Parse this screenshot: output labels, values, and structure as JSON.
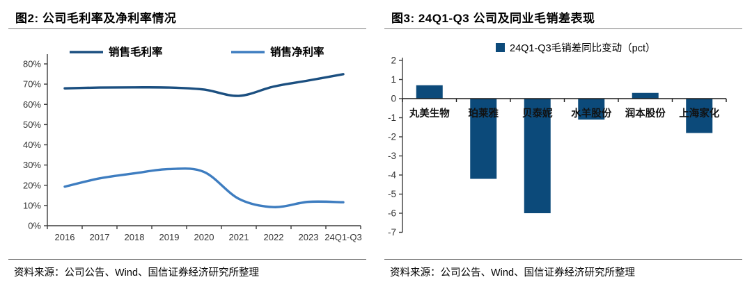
{
  "left_panel": {
    "title": "图2: 公司毛利率及净利率情况",
    "source": "资料来源：公司公告、Wind、国信证券经济研究所整理"
  },
  "right_panel": {
    "title": "图3: 24Q1-Q3 公司及同业毛销差表现",
    "source": "资料来源：公司公告、Wind、国信证券经济研究所整理"
  },
  "colors": {
    "gross_margin_line": "#1b4f80",
    "net_margin_line": "#3e7dc0",
    "bar_fill": "#0c4a7a",
    "axis": "#3c3c3c",
    "tick_label": "#333333",
    "rule_gray": "#7a7a7a"
  },
  "chart_data": [
    {
      "type": "line",
      "title": "公司毛利率及净利率情况",
      "categories": [
        "2016",
        "2017",
        "2018",
        "2019",
        "2020",
        "2021",
        "2022",
        "2023",
        "24Q1-Q3"
      ],
      "series": [
        {
          "name": "销售毛利率",
          "color": "#1b4f80",
          "values": [
            67.9,
            68.3,
            68.4,
            68.3,
            67.3,
            64.2,
            68.8,
            71.8,
            74.9
          ]
        },
        {
          "name": "销售净利率",
          "color": "#3e7dc0",
          "values": [
            19.3,
            23.4,
            25.9,
            28.0,
            26.6,
            13.3,
            9.2,
            11.8,
            11.6
          ]
        }
      ],
      "xlabel": "",
      "ylabel": "",
      "ylim": [
        0,
        80
      ],
      "ytick_step": 10,
      "ytick_suffix": "%",
      "grid": false,
      "legend_position": "top"
    },
    {
      "type": "bar",
      "title": "24Q1-Q3 公司及同业毛销差表现",
      "legend": "24Q1-Q3毛销差同比变动（pct）",
      "categories": [
        "丸美生物",
        "珀莱雅",
        "贝泰妮",
        "水羊股份",
        "润本股份",
        "上海家化"
      ],
      "values": [
        0.7,
        -4.2,
        -6.0,
        -1.1,
        0.3,
        -1.8
      ],
      "xlabel": "",
      "ylabel": "",
      "ylim": [
        -7,
        2
      ],
      "ytick_step": 1,
      "grid": false,
      "legend_position": "top"
    }
  ]
}
